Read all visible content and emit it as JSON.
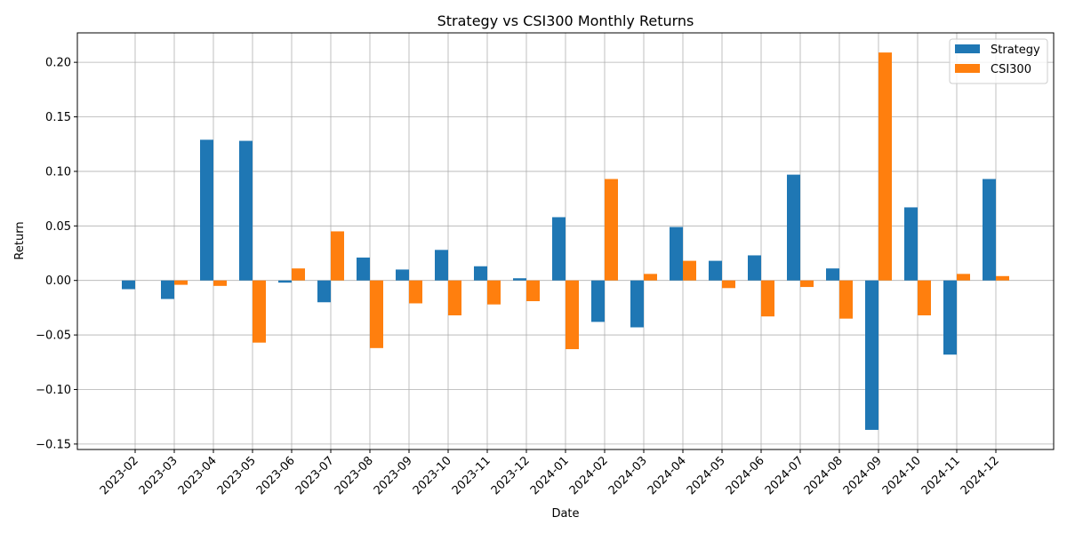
{
  "chart_data": {
    "type": "bar",
    "title": "Strategy vs CSI300 Monthly Returns",
    "xlabel": "Date",
    "ylabel": "Return",
    "grid": true,
    "legend_position": "top-right",
    "ylim": [
      -0.155,
      0.227
    ],
    "yticks": [
      -0.15,
      -0.1,
      -0.05,
      0.0,
      0.05,
      0.1,
      0.15,
      0.2
    ],
    "categories": [
      "2023-02",
      "2023-03",
      "2023-04",
      "2023-05",
      "2023-06",
      "2023-07",
      "2023-08",
      "2023-09",
      "2023-10",
      "2023-11",
      "2023-12",
      "2024-01",
      "2024-02",
      "2024-03",
      "2024-04",
      "2024-05",
      "2024-06",
      "2024-07",
      "2024-08",
      "2024-09",
      "2024-10",
      "2024-11",
      "2024-12"
    ],
    "series": [
      {
        "name": "Strategy",
        "color": "#1f77b4",
        "values": [
          -0.008,
          -0.017,
          0.129,
          0.128,
          -0.002,
          -0.02,
          0.021,
          0.01,
          0.028,
          0.013,
          0.002,
          0.058,
          -0.038,
          -0.043,
          0.049,
          0.018,
          0.023,
          0.097,
          0.011,
          -0.137,
          0.067,
          -0.068,
          0.093
        ]
      },
      {
        "name": "CSI300",
        "color": "#ff7f0e",
        "values": [
          0.0,
          -0.004,
          -0.005,
          -0.057,
          0.011,
          0.045,
          -0.062,
          -0.021,
          -0.032,
          -0.022,
          -0.019,
          -0.063,
          0.093,
          0.006,
          0.018,
          -0.007,
          -0.033,
          -0.006,
          -0.035,
          0.209,
          -0.032,
          0.006,
          0.004
        ]
      }
    ]
  }
}
